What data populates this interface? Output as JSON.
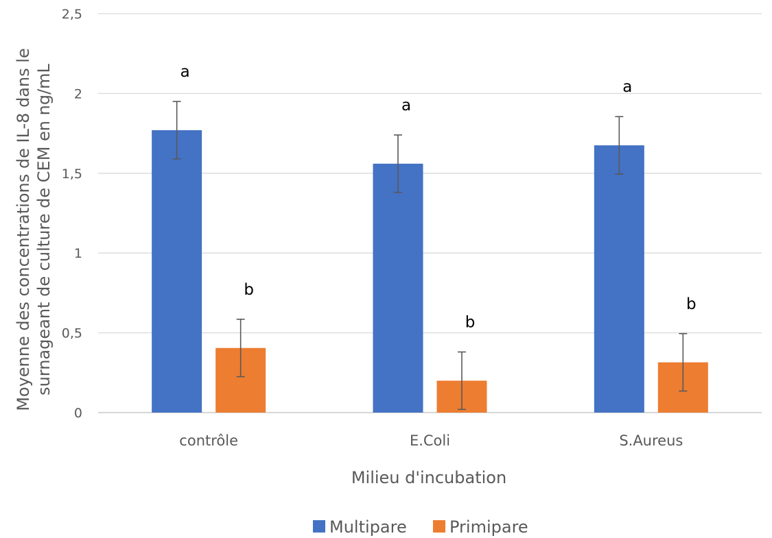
{
  "chart_data": {
    "type": "bar",
    "categories": [
      "contrôle",
      "E.Coli",
      "S.Aureus"
    ],
    "series": [
      {
        "name": "Multipare",
        "color": "#4472C4",
        "values": [
          1.77,
          1.56,
          1.675
        ],
        "error": [
          0.18,
          0.18,
          0.18
        ],
        "labels": [
          "a",
          "a",
          "a"
        ]
      },
      {
        "name": "Primipare",
        "color": "#ED7D31",
        "values": [
          0.405,
          0.2,
          0.315
        ],
        "error": [
          0.18,
          0.18,
          0.18
        ],
        "labels": [
          "b",
          "b",
          "b"
        ]
      }
    ],
    "xlabel": "Milieu d'incubation",
    "ylabel_lines": [
      "Moyenne des concentrations de IL-8 dans le",
      "surnageant  de culture de CEM en ng/mL"
    ],
    "ylim": [
      0,
      2.5
    ],
    "yticks": [
      "0",
      "0,5",
      "1",
      "1,5",
      "2",
      "2,5"
    ],
    "ytick_values": [
      0,
      0.5,
      1,
      1.5,
      2,
      2.5
    ],
    "grid": true,
    "legend_position": "bottom"
  }
}
